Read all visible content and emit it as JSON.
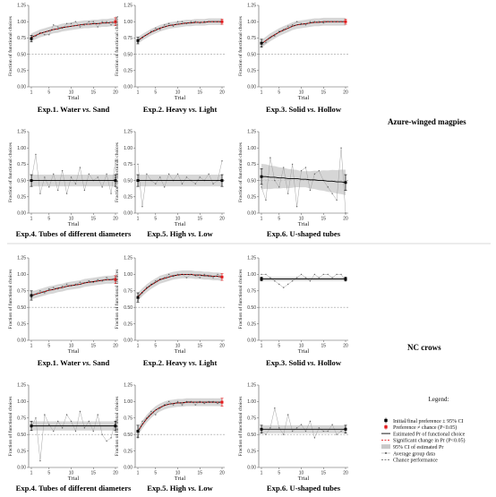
{
  "figure": {
    "groups": [
      "Azure-winged magpies",
      "NC crows"
    ],
    "legend": {
      "title": "Legend:",
      "items": [
        {
          "key": "initial-final",
          "label": "Initial/final preference ± 95% CI"
        },
        {
          "key": "pref-chance",
          "label": "Preference ≠ chance (P<0.05)"
        },
        {
          "key": "estimated",
          "label": "Estimated Pr of functional choice"
        },
        {
          "key": "signif-change",
          "label": "Significant change in Pr (P<0.05)"
        },
        {
          "key": "ci",
          "label": "95% CI of estimated Pr"
        },
        {
          "key": "avg",
          "label": "Average group data"
        },
        {
          "key": "chance",
          "label": "Chance performance"
        }
      ]
    },
    "colors": {
      "estimated": "#000000",
      "significant": "#e41a1c",
      "ci": "#c8c8c8",
      "points": "#666666",
      "chance": "#999999"
    }
  },
  "chart_data": [
    {
      "type": "line",
      "group": "Azure-winged magpies",
      "title_a": "Exp.1. Water",
      "title_b": "vs.",
      "title_c": "Sand",
      "xlabel": "Trial",
      "ylabel": "Fraction of functional choices",
      "xlim": [
        1,
        20
      ],
      "ylim": [
        0,
        1.25
      ],
      "xticks": [
        1,
        5,
        10,
        15,
        20
      ],
      "yticks": [
        "0.00",
        "0.25",
        "0.50",
        "0.75",
        "1.00",
        "1.25"
      ],
      "chance": 0.5,
      "raw": [
        0.72,
        0.78,
        0.83,
        0.8,
        0.8,
        0.95,
        0.92,
        0.9,
        0.97,
        0.97,
        1.0,
        0.92,
        0.95,
        1.0,
        1.0,
        0.92,
        1.0,
        1.0,
        0.95,
        1.0
      ],
      "fit": [
        0.76,
        0.79,
        0.82,
        0.84,
        0.86,
        0.88,
        0.89,
        0.91,
        0.92,
        0.93,
        0.94,
        0.95,
        0.96,
        0.96,
        0.97,
        0.97,
        0.98,
        0.98,
        0.99,
        0.99
      ],
      "ci_width": 0.06,
      "significant": true,
      "endpoints": [
        [
          0.74,
          0.05
        ],
        [
          1.0,
          0.06
        ]
      ]
    },
    {
      "type": "line",
      "group": "Azure-winged magpies",
      "title_a": "Exp.2. Heavy",
      "title_b": "vs.",
      "title_c": "Light",
      "xlabel": "Trial",
      "ylabel": "Fraction of functional choices",
      "xlim": [
        1,
        20
      ],
      "ylim": [
        0,
        1.25
      ],
      "xticks": [
        1,
        5,
        10,
        15,
        20
      ],
      "yticks": [
        "0.00",
        "0.25",
        "0.50",
        "0.75",
        "1.00",
        "1.25"
      ],
      "chance": 0.5,
      "raw": [
        0.68,
        0.75,
        0.8,
        0.85,
        0.9,
        0.88,
        0.95,
        0.97,
        0.93,
        1.0,
        1.0,
        0.97,
        1.0,
        1.0,
        0.98,
        1.0,
        1.0,
        1.0,
        1.0,
        1.0
      ],
      "fit": [
        0.71,
        0.76,
        0.8,
        0.84,
        0.87,
        0.9,
        0.92,
        0.94,
        0.95,
        0.96,
        0.97,
        0.98,
        0.98,
        0.99,
        0.99,
        0.99,
        1.0,
        1.0,
        1.0,
        1.0
      ],
      "ci_width": 0.05,
      "significant": true,
      "endpoints": [
        [
          0.71,
          0.05
        ],
        [
          1.0,
          0.04
        ]
      ]
    },
    {
      "type": "line",
      "group": "Azure-winged magpies",
      "title_a": "Exp.3. Solid",
      "title_b": "vs.",
      "title_c": "Hollow",
      "xlabel": "Trial",
      "ylabel": "Fraction of functional choices",
      "xlim": [
        1,
        20
      ],
      "ylim": [
        0,
        1.25
      ],
      "xticks": [
        1,
        5,
        10,
        15,
        20
      ],
      "yticks": [
        "0.00",
        "0.25",
        "0.50",
        "0.75",
        "1.00",
        "1.25"
      ],
      "chance": 0.5,
      "raw": [
        0.62,
        0.68,
        0.75,
        0.78,
        0.85,
        0.88,
        0.93,
        0.95,
        1.0,
        0.97,
        0.95,
        1.0,
        1.0,
        1.0,
        0.98,
        1.0,
        1.0,
        1.0,
        1.0,
        1.0
      ],
      "fit": [
        0.66,
        0.71,
        0.76,
        0.8,
        0.84,
        0.87,
        0.9,
        0.93,
        0.95,
        0.96,
        0.97,
        0.98,
        0.99,
        0.99,
        1.0,
        1.0,
        1.0,
        1.0,
        1.0,
        1.0
      ],
      "ci_width": 0.06,
      "significant": true,
      "endpoints": [
        [
          0.67,
          0.06
        ],
        [
          1.0,
          0.04
        ]
      ]
    },
    {
      "type": "line",
      "group": "Azure-winged magpies",
      "title_a": "Exp.4. Tubes of different diameters",
      "title_b": "",
      "title_c": "",
      "xlabel": "Trial",
      "ylabel": "Fraction of functional choices",
      "xlim": [
        1,
        20
      ],
      "ylim": [
        0,
        1.25
      ],
      "xticks": [
        1,
        5,
        10,
        15,
        20
      ],
      "yticks": [
        "0.00",
        "0.25",
        "0.50",
        "0.75",
        "1.00",
        "1.25"
      ],
      "chance": 0.5,
      "raw": [
        0.5,
        0.9,
        0.3,
        0.55,
        0.4,
        0.6,
        0.35,
        0.65,
        0.3,
        0.55,
        0.45,
        0.7,
        0.35,
        0.6,
        0.5,
        0.55,
        0.4,
        0.6,
        0.3,
        0.8
      ],
      "fit": [
        0.5,
        0.5,
        0.5,
        0.5,
        0.5,
        0.5,
        0.5,
        0.5,
        0.5,
        0.5,
        0.5,
        0.5,
        0.5,
        0.5,
        0.5,
        0.5,
        0.5,
        0.5,
        0.5,
        0.5
      ],
      "ci_width": 0.09,
      "significant": false,
      "endpoints": [
        [
          0.5,
          0.09
        ],
        [
          0.5,
          0.09
        ]
      ]
    },
    {
      "type": "line",
      "group": "Azure-winged magpies",
      "title_a": "Exp.5. High",
      "title_b": "vs.",
      "title_c": "Low",
      "xlabel": "Trial",
      "ylabel": "Fraction of functional choices",
      "xlim": [
        1,
        20
      ],
      "ylim": [
        0,
        1.25
      ],
      "xticks": [
        1,
        5,
        10,
        15,
        20
      ],
      "yticks": [
        "0.00",
        "0.25",
        "0.50",
        "0.75",
        "1.00",
        "1.25"
      ],
      "chance": 0.5,
      "raw": [
        0.75,
        0.1,
        0.6,
        0.5,
        0.45,
        0.55,
        0.4,
        0.6,
        0.5,
        0.6,
        0.45,
        0.55,
        0.5,
        0.45,
        0.55,
        0.5,
        0.6,
        0.45,
        0.5,
        0.8
      ],
      "fit": [
        0.5,
        0.5,
        0.5,
        0.5,
        0.5,
        0.5,
        0.5,
        0.5,
        0.5,
        0.5,
        0.5,
        0.5,
        0.5,
        0.5,
        0.5,
        0.5,
        0.5,
        0.5,
        0.5,
        0.5
      ],
      "ci_width": 0.09,
      "significant": false,
      "endpoints": [
        [
          0.5,
          0.09
        ],
        [
          0.5,
          0.09
        ]
      ]
    },
    {
      "type": "line",
      "group": "Azure-winged magpies",
      "title_a": "Exp.6. U-shaped tubes",
      "title_b": "",
      "title_c": "",
      "xlabel": "Trial",
      "ylabel": "Fraction of functional choices",
      "xlim": [
        1,
        20
      ],
      "ylim": [
        0,
        1.25
      ],
      "xticks": [
        1,
        5,
        10,
        15,
        20
      ],
      "yticks": [
        "0.00",
        "0.25",
        "0.50",
        "0.75",
        "1.00",
        "1.25"
      ],
      "chance": 0.5,
      "raw": [
        0.4,
        0.2,
        0.85,
        0.5,
        0.4,
        0.7,
        0.3,
        0.75,
        0.1,
        0.65,
        0.7,
        0.35,
        0.6,
        0.65,
        0.5,
        0.4,
        0.3,
        0.2,
        1.0,
        0.0
      ],
      "fit": [
        0.56,
        0.56,
        0.55,
        0.55,
        0.54,
        0.54,
        0.53,
        0.53,
        0.53,
        0.52,
        0.52,
        0.51,
        0.51,
        0.5,
        0.5,
        0.49,
        0.49,
        0.48,
        0.48,
        0.47
      ],
      "ci_width": 0.12,
      "ci_growth": 0.008,
      "significant": false,
      "endpoints": [
        [
          0.56,
          0.12
        ],
        [
          0.47,
          0.12
        ]
      ]
    },
    {
      "type": "line",
      "group": "NC crows",
      "title_a": "Exp.1. Water",
      "title_b": "vs.",
      "title_c": "Sand",
      "xlabel": "Trial",
      "ylabel": "Fraction of functional choices",
      "xlim": [
        1,
        20
      ],
      "ylim": [
        0,
        1.25
      ],
      "xticks": [
        1,
        5,
        10,
        15,
        20
      ],
      "yticks": [
        "0.00",
        "0.25",
        "0.50",
        "0.75",
        "1.00",
        "1.25"
      ],
      "chance": 0.5,
      "raw": [
        0.65,
        0.7,
        0.75,
        0.72,
        0.78,
        0.8,
        0.78,
        0.82,
        0.85,
        0.83,
        0.85,
        0.88,
        0.87,
        0.9,
        0.88,
        0.92,
        0.9,
        0.95,
        0.92,
        0.95
      ],
      "fit": [
        0.68,
        0.7,
        0.72,
        0.74,
        0.76,
        0.77,
        0.79,
        0.8,
        0.82,
        0.83,
        0.84,
        0.85,
        0.87,
        0.88,
        0.89,
        0.9,
        0.91,
        0.92,
        0.92,
        0.93
      ],
      "ci_width": 0.06,
      "significant": true,
      "endpoints": [
        [
          0.68,
          0.07
        ],
        [
          0.92,
          0.06
        ]
      ]
    },
    {
      "type": "line",
      "group": "NC crows",
      "title_a": "Exp.2. Heavy",
      "title_b": "vs.",
      "title_c": "Light",
      "xlabel": "Trial",
      "ylabel": "Fraction of functional choices",
      "xlim": [
        1,
        20
      ],
      "ylim": [
        0,
        1.25
      ],
      "xticks": [
        1,
        5,
        10,
        15,
        20
      ],
      "yticks": [
        "0.00",
        "0.25",
        "0.50",
        "0.75",
        "1.00",
        "1.25"
      ],
      "chance": 0.5,
      "raw": [
        0.6,
        0.72,
        0.8,
        0.85,
        0.9,
        0.93,
        0.95,
        1.0,
        0.97,
        1.0,
        1.0,
        0.95,
        1.0,
        0.98,
        0.95,
        1.0,
        0.97,
        0.95,
        1.0,
        0.97
      ],
      "fit": [
        0.66,
        0.73,
        0.79,
        0.84,
        0.88,
        0.92,
        0.94,
        0.96,
        0.98,
        0.99,
        1.0,
        1.0,
        1.0,
        0.99,
        0.99,
        0.98,
        0.98,
        0.97,
        0.97,
        0.96
      ],
      "ci_width": 0.06,
      "significant": true,
      "endpoints": [
        [
          0.65,
          0.07
        ],
        [
          0.96,
          0.05
        ]
      ]
    },
    {
      "type": "line",
      "group": "NC crows",
      "title_a": "Exp.3. Solid",
      "title_b": "vs.",
      "title_c": "Hollow",
      "xlabel": "Trial",
      "ylabel": "Fraction of functional choices",
      "xlim": [
        1,
        20
      ],
      "ylim": [
        0,
        1.25
      ],
      "xticks": [
        1,
        5,
        10,
        15,
        20
      ],
      "yticks": [
        "0.00",
        "0.25",
        "0.50",
        "0.75",
        "1.00",
        "1.25"
      ],
      "chance": 0.5,
      "raw": [
        1.0,
        1.0,
        0.95,
        0.9,
        0.85,
        0.8,
        0.85,
        0.9,
        0.95,
        1.0,
        0.95,
        0.9,
        1.0,
        0.95,
        1.0,
        1.0,
        0.95,
        1.0,
        1.0,
        0.9
      ],
      "fit": [
        0.93,
        0.93,
        0.93,
        0.93,
        0.93,
        0.93,
        0.93,
        0.93,
        0.93,
        0.93,
        0.93,
        0.93,
        0.93,
        0.93,
        0.93,
        0.93,
        0.93,
        0.93,
        0.93,
        0.93
      ],
      "ci_width": 0.03,
      "significant": false,
      "endpoints": [
        [
          0.93,
          0.03
        ],
        [
          0.93,
          0.03
        ]
      ]
    },
    {
      "type": "line",
      "group": "NC crows",
      "title_a": "Exp.4. Tubes of different diameters",
      "title_b": "",
      "title_c": "",
      "xlabel": "Trial",
      "ylabel": "Fraction of functional choices",
      "xlim": [
        1,
        20
      ],
      "ylim": [
        0,
        1.25
      ],
      "xticks": [
        1,
        5,
        10,
        15,
        20
      ],
      "yticks": [
        "0.00",
        "0.25",
        "0.50",
        "0.75",
        "1.00",
        "1.25"
      ],
      "chance": 0.5,
      "raw": [
        0.6,
        0.75,
        0.1,
        0.8,
        0.65,
        0.55,
        0.7,
        0.6,
        0.8,
        0.7,
        0.55,
        0.85,
        0.6,
        0.7,
        0.55,
        0.8,
        0.5,
        0.4,
        0.45,
        0.7
      ],
      "fit": [
        0.63,
        0.63,
        0.63,
        0.63,
        0.63,
        0.63,
        0.63,
        0.63,
        0.63,
        0.63,
        0.63,
        0.63,
        0.63,
        0.63,
        0.63,
        0.63,
        0.63,
        0.63,
        0.63,
        0.63
      ],
      "ci_width": 0.07,
      "significant": false,
      "endpoints": [
        [
          0.63,
          0.07
        ],
        [
          0.63,
          0.07
        ]
      ]
    },
    {
      "type": "line",
      "group": "NC crows",
      "title_a": "Exp.5. High",
      "title_b": "vs.",
      "title_c": "Low",
      "xlabel": "Trial",
      "ylabel": "Fraction of functional choices",
      "xlim": [
        1,
        20
      ],
      "ylim": [
        0,
        1.25
      ],
      "xticks": [
        1,
        5,
        10,
        15,
        20
      ],
      "yticks": [
        "0.00",
        "0.25",
        "0.50",
        "0.75",
        "1.00",
        "1.25"
      ],
      "chance": 0.5,
      "raw": [
        0.45,
        0.7,
        0.75,
        0.85,
        0.8,
        0.9,
        0.95,
        1.0,
        0.95,
        1.0,
        0.95,
        1.0,
        1.0,
        0.95,
        1.0,
        0.97,
        1.0,
        1.0,
        0.97,
        1.0
      ],
      "fit": [
        0.55,
        0.65,
        0.74,
        0.81,
        0.87,
        0.91,
        0.94,
        0.96,
        0.97,
        0.98,
        0.98,
        0.99,
        0.99,
        0.99,
        0.99,
        0.99,
        0.99,
        0.99,
        0.99,
        0.99
      ],
      "ci_width": 0.06,
      "significant": true,
      "endpoints": [
        [
          0.55,
          0.09
        ],
        [
          0.99,
          0.06
        ]
      ]
    },
    {
      "type": "line",
      "group": "NC crows",
      "title_a": "Exp.6. U-shaped tubes",
      "title_b": "",
      "title_c": "",
      "xlabel": "Trial",
      "ylabel": "Fraction of functional choices",
      "xlim": [
        1,
        20
      ],
      "ylim": [
        0,
        1.25
      ],
      "xticks": [
        1,
        5,
        10,
        15,
        20
      ],
      "yticks": [
        "0.00",
        "0.25",
        "0.50",
        "0.75",
        "1.00",
        "1.25"
      ],
      "chance": 0.5,
      "raw": [
        0.55,
        0.5,
        0.6,
        0.9,
        0.6,
        0.5,
        0.8,
        0.55,
        0.6,
        0.65,
        0.55,
        0.7,
        0.45,
        0.6,
        0.55,
        0.55,
        0.65,
        0.5,
        0.55,
        0.6
      ],
      "fit": [
        0.58,
        0.58,
        0.58,
        0.58,
        0.58,
        0.58,
        0.58,
        0.58,
        0.58,
        0.58,
        0.58,
        0.58,
        0.58,
        0.58,
        0.58,
        0.58,
        0.58,
        0.58,
        0.58,
        0.58
      ],
      "ci_width": 0.06,
      "significant": false,
      "endpoints": [
        [
          0.58,
          0.06
        ],
        [
          0.58,
          0.06
        ]
      ]
    }
  ]
}
